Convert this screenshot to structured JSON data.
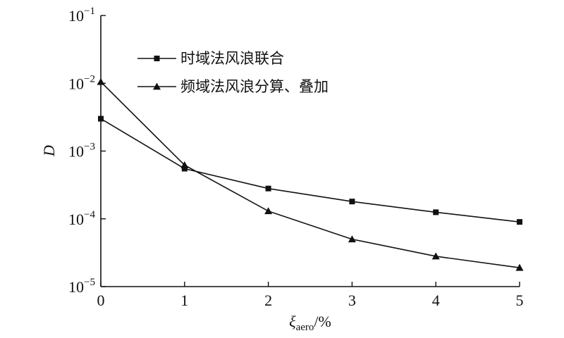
{
  "chart_data": {
    "type": "line",
    "x_symbol": "ξ",
    "x_subscript": "aero",
    "x_unit": "/%",
    "ylabel": "D",
    "yscale": "log",
    "xlim": [
      0,
      5
    ],
    "ylim_exp": [
      -5,
      -1
    ],
    "x_ticks": [
      "0",
      "1",
      "2",
      "3",
      "4",
      "5"
    ],
    "y_tick_base": "10",
    "y_tick_exponents": [
      "−1",
      "−2",
      "−3",
      "−4",
      "−5"
    ],
    "grid": false,
    "legend_position": "top-left",
    "series": [
      {
        "name": "时域法风浪联合",
        "marker": "square",
        "x": [
          0,
          1,
          2,
          3,
          4,
          5
        ],
        "values": [
          0.003,
          0.00055,
          0.00028,
          0.00018,
          0.000125,
          9e-05
        ]
      },
      {
        "name": "频域法风浪分算、叠加",
        "marker": "triangle",
        "x": [
          0,
          1,
          2,
          3,
          4,
          5
        ],
        "values": [
          0.0105,
          0.00062,
          0.00013,
          5e-05,
          2.8e-05,
          1.9e-05
        ]
      }
    ],
    "colors": {
      "line": "#111111",
      "axis": "#111111"
    }
  }
}
